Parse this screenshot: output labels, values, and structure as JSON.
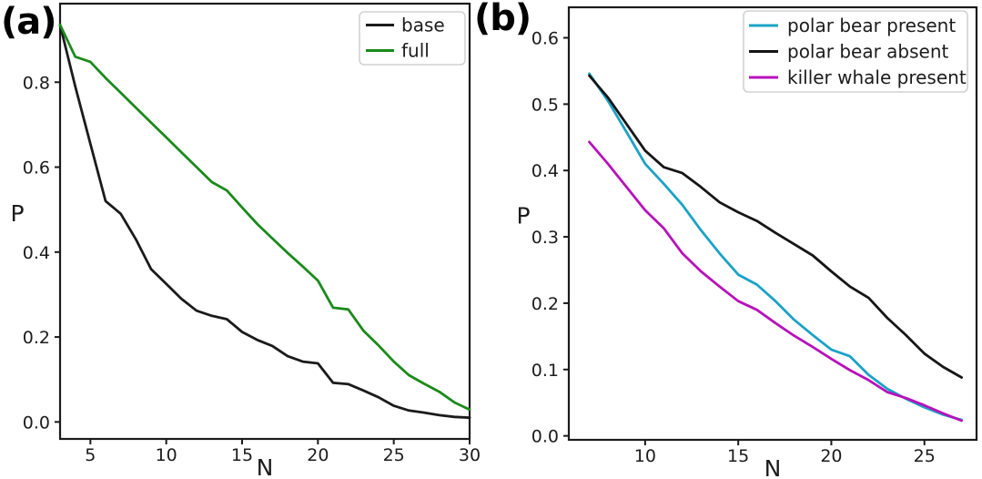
{
  "figure": {
    "background": "#ffffff",
    "text_color": "#1c1c1c",
    "axis_color": "#1b1b1b",
    "panels": [
      {
        "label": "(a)"
      },
      {
        "label": "(b)"
      }
    ]
  },
  "chart_data": [
    {
      "panel": "(a)",
      "type": "line",
      "title": "",
      "xlabel": "N",
      "ylabel": "P",
      "xlim": [
        3,
        30
      ],
      "ylim": [
        -0.04,
        0.985
      ],
      "grid": false,
      "legend_position": "upper right",
      "xticks": [
        5,
        10,
        15,
        20,
        25,
        30
      ],
      "xtick_labels": [
        "5",
        "10",
        "15",
        "20",
        "25",
        "30"
      ],
      "yticks": [
        0.0,
        0.2,
        0.4,
        0.6,
        0.8
      ],
      "ytick_labels": [
        "0.0",
        "0.2",
        "0.4",
        "0.6",
        "0.8"
      ],
      "x": [
        3,
        4,
        5,
        6,
        7,
        8,
        9,
        10,
        11,
        12,
        13,
        14,
        15,
        16,
        17,
        18,
        19,
        20,
        21,
        22,
        23,
        24,
        25,
        26,
        27,
        28,
        29,
        30
      ],
      "series": [
        {
          "name": "base",
          "color": "#1b1b1b",
          "values": [
            0.935,
            0.79,
            0.655,
            0.52,
            0.49,
            0.43,
            0.36,
            0.325,
            0.29,
            0.262,
            0.25,
            0.242,
            0.212,
            0.193,
            0.179,
            0.155,
            0.142,
            0.138,
            0.092,
            0.089,
            0.074,
            0.058,
            0.038,
            0.027,
            0.022,
            0.016,
            0.012,
            0.01
          ]
        },
        {
          "name": "full",
          "color": "#1b8a1b",
          "values": [
            0.935,
            0.86,
            0.848,
            0.81,
            0.775,
            0.74,
            0.705,
            0.67,
            0.635,
            0.6,
            0.565,
            0.545,
            0.505,
            0.466,
            0.432,
            0.398,
            0.366,
            0.333,
            0.269,
            0.265,
            0.215,
            0.18,
            0.142,
            0.11,
            0.09,
            0.071,
            0.046,
            0.029
          ]
        }
      ]
    },
    {
      "panel": "(b)",
      "type": "line",
      "title": "",
      "xlabel": "N",
      "ylabel": "P",
      "xlim": [
        5.9,
        27.8
      ],
      "ylim": [
        -0.006,
        0.646
      ],
      "grid": false,
      "legend_position": "upper right",
      "xticks": [
        10,
        15,
        20,
        25
      ],
      "xtick_labels": [
        "10",
        "15",
        "20",
        "25"
      ],
      "yticks": [
        0.0,
        0.1,
        0.2,
        0.3,
        0.4,
        0.5,
        0.6
      ],
      "ytick_labels": [
        "0.0",
        "0.1",
        "0.2",
        "0.3",
        "0.4",
        "0.5",
        "0.6"
      ],
      "x": [
        7,
        8,
        9,
        10,
        11,
        12,
        13,
        14,
        15,
        16,
        17,
        18,
        19,
        20,
        21,
        22,
        23,
        24,
        25,
        26,
        27
      ],
      "series": [
        {
          "name": "polar bear present",
          "color": "#1ca2c6",
          "values": [
            0.546,
            0.505,
            0.458,
            0.41,
            0.38,
            0.348,
            0.31,
            0.275,
            0.243,
            0.228,
            0.203,
            0.175,
            0.152,
            0.13,
            0.12,
            0.092,
            0.071,
            0.056,
            0.043,
            0.032,
            0.024
          ]
        },
        {
          "name": "polar bear absent",
          "color": "#161616",
          "values": [
            0.543,
            0.51,
            0.47,
            0.43,
            0.405,
            0.396,
            0.375,
            0.352,
            0.337,
            0.324,
            0.306,
            0.289,
            0.272,
            0.248,
            0.225,
            0.208,
            0.178,
            0.152,
            0.124,
            0.104,
            0.088
          ]
        },
        {
          "name": "killer whale present",
          "color": "#b811ba",
          "values": [
            0.443,
            0.41,
            0.375,
            0.34,
            0.313,
            0.275,
            0.248,
            0.225,
            0.203,
            0.19,
            0.17,
            0.151,
            0.134,
            0.116,
            0.099,
            0.084,
            0.066,
            0.057,
            0.046,
            0.034,
            0.023
          ]
        }
      ]
    }
  ]
}
